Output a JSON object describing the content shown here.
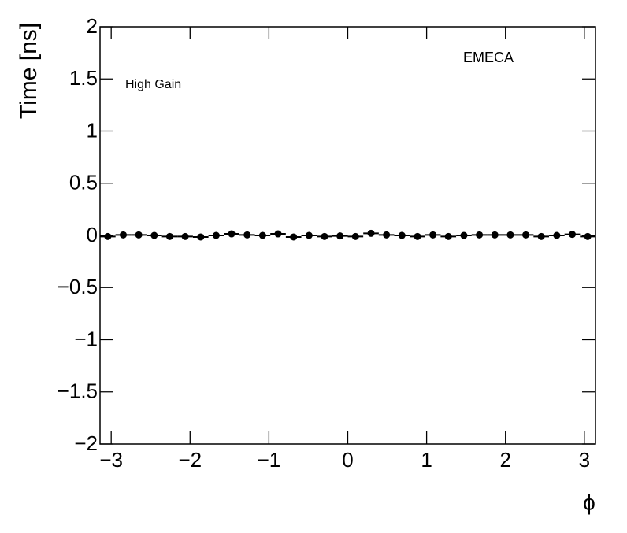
{
  "chart_data": {
    "type": "scatter",
    "y_label": "Time [ns]",
    "x_label": "ϕ",
    "annotations": [
      "EMECA",
      "High Gain"
    ],
    "xlim": [
      -3.1416,
      3.1416
    ],
    "ylim": [
      -2,
      2
    ],
    "xticks": [
      {
        "value": -3,
        "label": "−3"
      },
      {
        "value": -2,
        "label": "−2"
      },
      {
        "value": -1,
        "label": "−1"
      },
      0,
      1,
      2,
      3
    ],
    "yticks": [
      {
        "value": -2,
        "label": "−2"
      },
      {
        "value": -1.5,
        "label": "−1.5"
      },
      {
        "value": -1,
        "label": "−1"
      },
      {
        "value": -0.5,
        "label": "−0.5"
      },
      0,
      0.5,
      1,
      1.5,
      2
    ],
    "xerr": 0.0982,
    "series": [
      {
        "color": "#000000",
        "x": [
          -3.043,
          -2.847,
          -2.651,
          -2.454,
          -2.258,
          -2.062,
          -1.865,
          -1.669,
          -1.473,
          -1.276,
          -1.08,
          -0.884,
          -0.687,
          -0.491,
          -0.295,
          -0.098,
          0.098,
          0.295,
          0.491,
          0.687,
          0.884,
          1.08,
          1.276,
          1.473,
          1.669,
          1.865,
          2.062,
          2.258,
          2.454,
          2.651,
          2.847,
          3.043
        ],
        "values": [
          -0.01,
          0.005,
          0.005,
          0,
          -0.01,
          -0.01,
          -0.015,
          0,
          0.015,
          0.005,
          0,
          0.015,
          -0.015,
          0,
          -0.01,
          -0.005,
          -0.01,
          0.02,
          0.005,
          0,
          -0.01,
          0.005,
          -0.01,
          0,
          0.005,
          0.005,
          0.005,
          0.005,
          -0.01,
          0,
          0.01,
          -0.01
        ]
      }
    ]
  }
}
